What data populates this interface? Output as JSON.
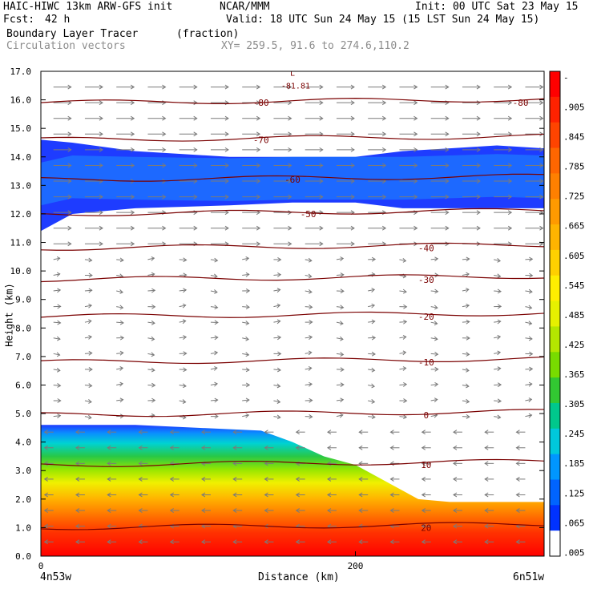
{
  "header": {
    "model": "HAIC-HIWC 13km ARW-GFS init",
    "center": "NCAR/MMM",
    "init": "Init: 00 UTC Sat 23 May 15",
    "fcst_label": "Fcst:",
    "fcst_value": "42 h",
    "valid": "Valid: 18 UTC Sun 24 May 15 (15 LST Sun 24 May 15)",
    "field": "Boundary Layer Tracer",
    "field_units": "(fraction)",
    "vectors": "Circulation vectors",
    "xy": "XY= 259.5, 91.6 to 274.6,110.2"
  },
  "chart_data": {
    "type": "heatmap",
    "title": "Boundary Layer Tracer",
    "units": "(fraction)",
    "xlabel": "Distance (km)",
    "ylabel": "Height (km)",
    "xlim": [
      0,
      320
    ],
    "ylim": [
      0,
      17
    ],
    "x_ticks": [
      0,
      200
    ],
    "x_tick_labels": [
      "0",
      "200"
    ],
    "x_end_labels": [
      "4n53w",
      "6n51w"
    ],
    "y_ticks": [
      0,
      1,
      2,
      3,
      4,
      5,
      6,
      7,
      8,
      9,
      10,
      11,
      12,
      13,
      14,
      15,
      16,
      17
    ],
    "y_tick_labels": [
      "0.0",
      "1.0",
      "2.0",
      "3.0",
      "4.0",
      "5.0",
      "6.0",
      "7.0",
      "8.0",
      "9.0",
      "10.0",
      "11.0",
      "12.0",
      "13.0",
      "14.0",
      "15.0",
      "16.0",
      "17.0"
    ],
    "colorbar": {
      "labels": [
        "-",
        ".905",
        ".845",
        ".785",
        ".725",
        ".665",
        ".605",
        ".545",
        ".485",
        ".425",
        ".365",
        ".305",
        ".245",
        ".185",
        ".125",
        ".065",
        ".005"
      ],
      "colors": [
        "#ff0000",
        "#ff2200",
        "#ff4400",
        "#ff6600",
        "#ff8000",
        "#ff9a00",
        "#ffb400",
        "#ffd000",
        "#ffee00",
        "#e6f000",
        "#b4e600",
        "#78dc00",
        "#32c832",
        "#00c88c",
        "#00c8dc",
        "#0096ff",
        "#0064ff",
        "#0032ff",
        "#ffffff"
      ]
    },
    "tracer_top_km": {
      "x": [
        0,
        30,
        60,
        100,
        140,
        160,
        180,
        200,
        220,
        240,
        260,
        290,
        320
      ],
      "y": [
        4.6,
        4.6,
        4.6,
        4.5,
        4.4,
        4.0,
        3.5,
        3.2,
        2.6,
        2.0,
        1.9,
        1.9,
        1.9
      ]
    },
    "upper_layer_km": {
      "x": [
        0,
        20,
        60,
        120,
        160,
        200,
        230,
        260,
        290,
        320
      ],
      "bottom": [
        11.4,
        12.0,
        12.2,
        12.3,
        12.4,
        12.4,
        12.2,
        12.2,
        12.2,
        12.2
      ],
      "top": [
        14.6,
        14.5,
        14.2,
        14.0,
        14.0,
        14.0,
        14.2,
        14.3,
        14.4,
        14.3
      ]
    },
    "isotherms": [
      {
        "label": "-80",
        "y": 15.9
      },
      {
        "label": "-70",
        "y": 14.6
      },
      {
        "label": "-60",
        "y": 13.2
      },
      {
        "label": "-50",
        "y": 12.0
      },
      {
        "label": "-40",
        "y": 10.8
      },
      {
        "label": "-30",
        "y": 9.7
      },
      {
        "label": "-20",
        "y": 8.4
      },
      {
        "label": "-10",
        "y": 6.8
      },
      {
        "label": "0",
        "y": 4.95
      },
      {
        "label": "10",
        "y": 3.2
      },
      {
        "label": "20",
        "y": 1.0
      }
    ],
    "low_marker": {
      "label": "L",
      "value": "-81.81"
    }
  }
}
